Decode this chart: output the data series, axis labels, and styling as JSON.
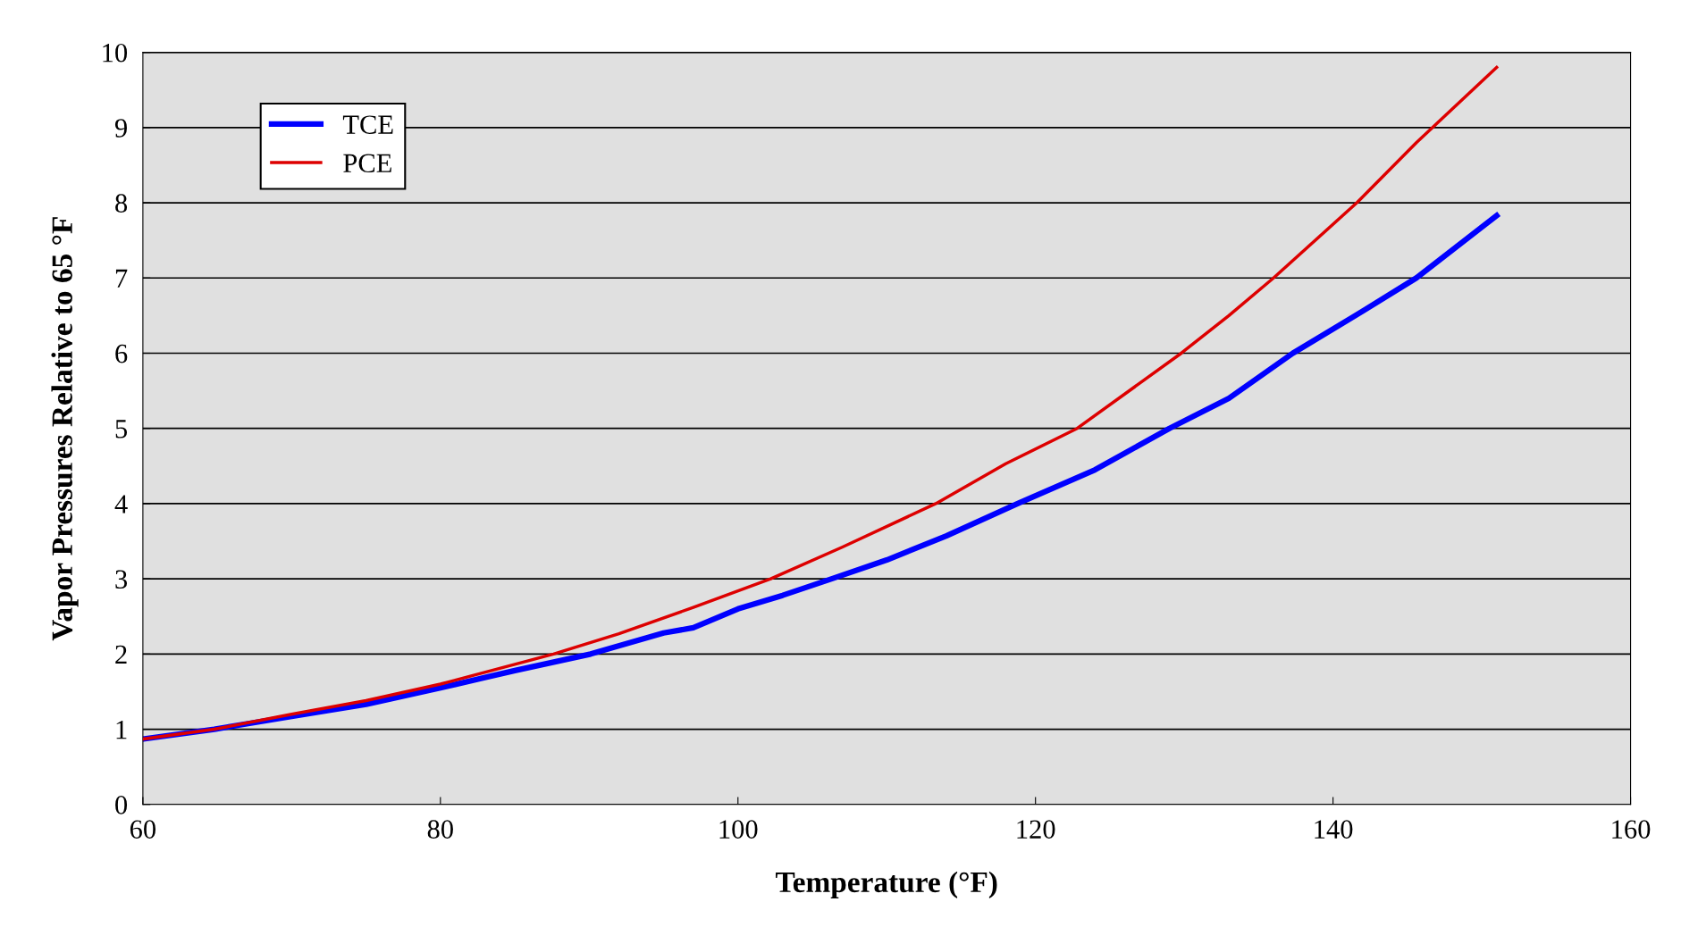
{
  "chart_data": {
    "type": "line",
    "xlabel": "Temperature (°F)",
    "ylabel": "Vapor Pressures Relative to 65 °F",
    "xlim": [
      60,
      160
    ],
    "xticks": [
      60,
      80,
      100,
      120,
      140,
      160
    ],
    "ylim": [
      0,
      10
    ],
    "yticks": [
      0,
      1,
      2,
      3,
      4,
      5,
      6,
      7,
      8,
      9,
      10
    ],
    "grid": "y",
    "legend": "top left",
    "marker": "none",
    "line_style": "solid",
    "series": [
      {
        "name": "TCE",
        "color": "#0000ff",
        "x": [
          60,
          64.8,
          70,
          75,
          80,
          85,
          90.1,
          95,
          97,
          100,
          103,
          106.3,
          110,
          114,
          118.8,
          124,
          129,
          133,
          137.3,
          141.5,
          145.6,
          151
        ],
        "values": [
          0.87,
          1.0,
          1.17,
          1.33,
          1.55,
          1.78,
          2.0,
          2.28,
          2.35,
          2.6,
          2.78,
          3.0,
          3.25,
          3.57,
          4.0,
          4.45,
          5.0,
          5.4,
          6.0,
          6.5,
          7.0,
          7.83
        ]
      },
      {
        "name": "PCE",
        "color": "#dd0000",
        "x": [
          60,
          64.8,
          70,
          75,
          80,
          87.6,
          92,
          97,
          102.2,
          107,
          113.3,
          118,
          122.8,
          127,
          129.8,
          133,
          136,
          141.6,
          145.6,
          151
        ],
        "values": [
          0.87,
          1.0,
          1.2,
          1.38,
          1.6,
          2.0,
          2.27,
          2.62,
          3.0,
          3.42,
          4.0,
          4.53,
          5.0,
          5.6,
          6.0,
          6.5,
          7.0,
          8.0,
          8.8,
          9.8
        ]
      }
    ]
  }
}
